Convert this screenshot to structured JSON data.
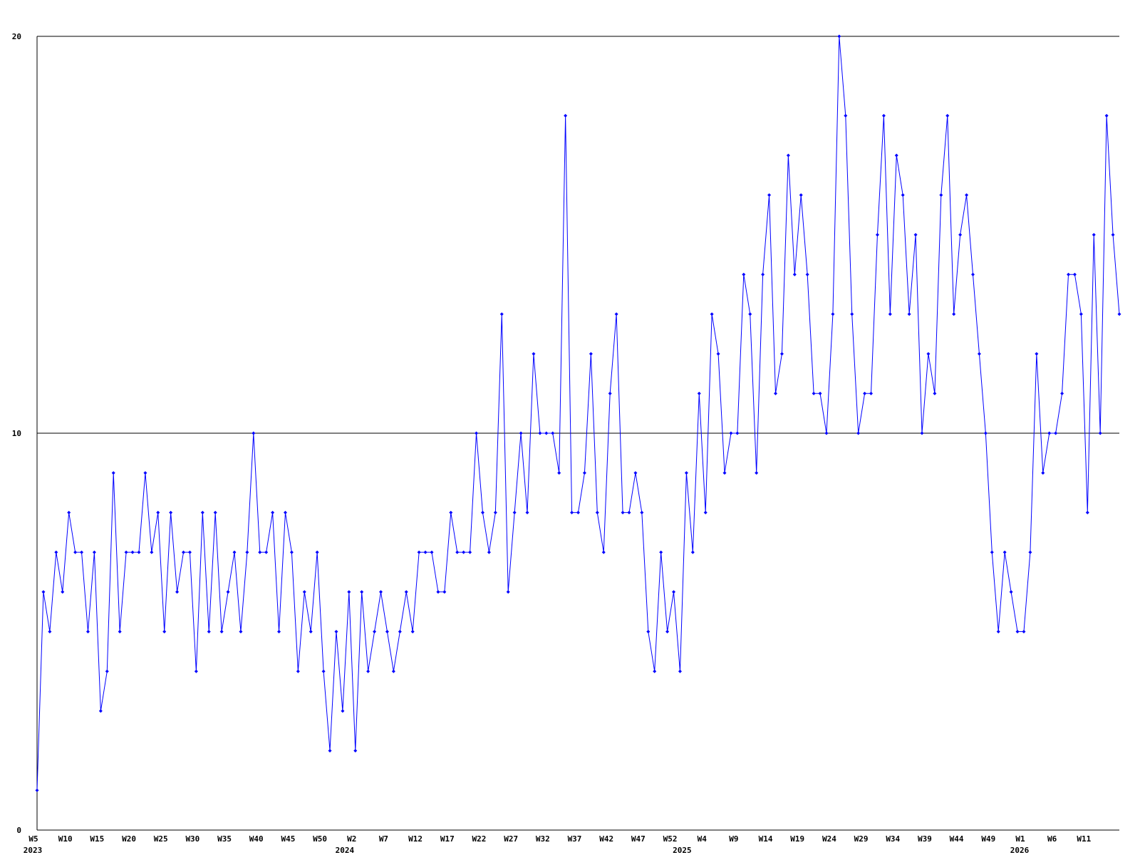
{
  "chart_data": {
    "type": "line",
    "categories": [
      "W5",
      null,
      null,
      null,
      null,
      "W10",
      null,
      null,
      null,
      null,
      "W15",
      null,
      null,
      null,
      null,
      "W20",
      null,
      null,
      null,
      null,
      "W25",
      null,
      null,
      null,
      null,
      "W30",
      null,
      null,
      null,
      null,
      "W35",
      null,
      null,
      null,
      null,
      "W40",
      null,
      null,
      null,
      null,
      "W45",
      null,
      null,
      null,
      null,
      "W50",
      null,
      null,
      null,
      null,
      "W2",
      null,
      null,
      null,
      null,
      "W7",
      null,
      null,
      null,
      null,
      "W12",
      null,
      null,
      null,
      null,
      "W17",
      null,
      null,
      null,
      null,
      "W22",
      null,
      null,
      null,
      null,
      "W27",
      null,
      null,
      null,
      null,
      "W32",
      null,
      null,
      null,
      null,
      "W37",
      null,
      null,
      null,
      null,
      "W42",
      null,
      null,
      null,
      null,
      "W47",
      null,
      null,
      null,
      null,
      "W52",
      null,
      null,
      null,
      null,
      "W4",
      null,
      null,
      null,
      null,
      "W9",
      null,
      null,
      null,
      null,
      "W14",
      null,
      null,
      null,
      null,
      "W19",
      null,
      null,
      null,
      null,
      "W24",
      null,
      null,
      null,
      null,
      "W29",
      null,
      null,
      null,
      null,
      "W34",
      null,
      null,
      null,
      null,
      "W39",
      null,
      null,
      null,
      null,
      "W44",
      null,
      null,
      null,
      null,
      "W49",
      null,
      null,
      null,
      null,
      "W1",
      null,
      null,
      null,
      null,
      "W6",
      null,
      null,
      null,
      null,
      "W11",
      null,
      null,
      null,
      null,
      null
    ],
    "category_years": [
      "2023",
      null,
      null,
      null,
      null,
      null,
      null,
      null,
      null,
      null,
      null,
      null,
      null,
      null,
      null,
      null,
      null,
      null,
      null,
      null,
      null,
      null,
      null,
      null,
      null,
      null,
      null,
      null,
      null,
      null,
      null,
      null,
      null,
      null,
      null,
      null,
      null,
      null,
      null,
      null,
      null,
      null,
      null,
      null,
      null,
      null,
      null,
      null,
      null,
      "2024",
      null,
      null,
      null,
      null,
      null,
      null,
      null,
      null,
      null,
      null,
      null,
      null,
      null,
      null,
      null,
      null,
      null,
      null,
      null,
      null,
      null,
      null,
      null,
      null,
      null,
      null,
      null,
      null,
      null,
      null,
      null,
      null,
      null,
      null,
      null,
      null,
      null,
      null,
      null,
      null,
      null,
      null,
      null,
      null,
      null,
      null,
      null,
      null,
      null,
      null,
      null,
      null,
      "2025",
      null,
      null,
      null,
      null,
      null,
      null,
      null,
      null,
      null,
      null,
      null,
      null,
      null,
      null,
      null,
      null,
      null,
      null,
      null,
      null,
      null,
      null,
      null,
      null,
      null,
      null,
      null,
      null,
      null,
      null,
      null,
      null,
      null,
      null,
      null,
      null,
      null,
      null,
      null,
      null,
      null,
      null,
      null,
      null,
      null,
      null,
      null,
      null,
      null,
      null,
      null,
      null,
      "2026",
      null,
      null,
      null,
      null,
      null,
      null,
      null,
      null,
      null,
      null,
      null,
      null,
      null,
      null,
      null
    ],
    "series": [
      {
        "color": "#0000ff",
        "values": [
          1,
          6,
          5,
          7,
          6,
          8,
          7,
          7,
          5,
          7,
          3,
          4,
          9,
          5,
          7,
          7,
          7,
          9,
          7,
          8,
          5,
          8,
          6,
          7,
          7,
          4,
          8,
          5,
          8,
          5,
          6,
          7,
          5,
          7,
          10,
          7,
          7,
          8,
          5,
          8,
          7,
          4,
          6,
          5,
          7,
          4,
          2,
          5,
          3,
          6,
          2,
          6,
          4,
          5,
          6,
          5,
          4,
          5,
          6,
          5,
          7,
          7,
          7,
          6,
          6,
          8,
          7,
          7,
          7,
          10,
          8,
          7,
          8,
          13,
          6,
          8,
          10,
          8,
          12,
          10,
          10,
          10,
          9,
          18,
          8,
          8,
          9,
          12,
          8,
          7,
          11,
          13,
          8,
          8,
          9,
          8,
          5,
          4,
          7,
          5,
          6,
          4,
          9,
          7,
          11,
          8,
          13,
          12,
          9,
          10,
          10,
          14,
          13,
          9,
          14,
          16,
          11,
          12,
          17,
          14,
          16,
          14,
          11,
          11,
          10,
          13,
          20,
          18,
          13,
          10,
          11,
          11,
          15,
          18,
          13,
          17,
          16,
          13,
          15,
          10,
          12,
          11,
          16,
          18,
          13,
          15,
          16,
          14,
          12,
          10,
          7,
          5,
          7,
          6,
          5,
          5,
          7,
          12,
          9,
          10,
          10,
          11,
          14,
          14,
          13,
          8,
          15,
          10,
          18,
          15,
          13
        ]
      }
    ],
    "ylim": [
      0,
      20
    ],
    "yticks": [
      0,
      10,
      20
    ],
    "grid": true
  }
}
